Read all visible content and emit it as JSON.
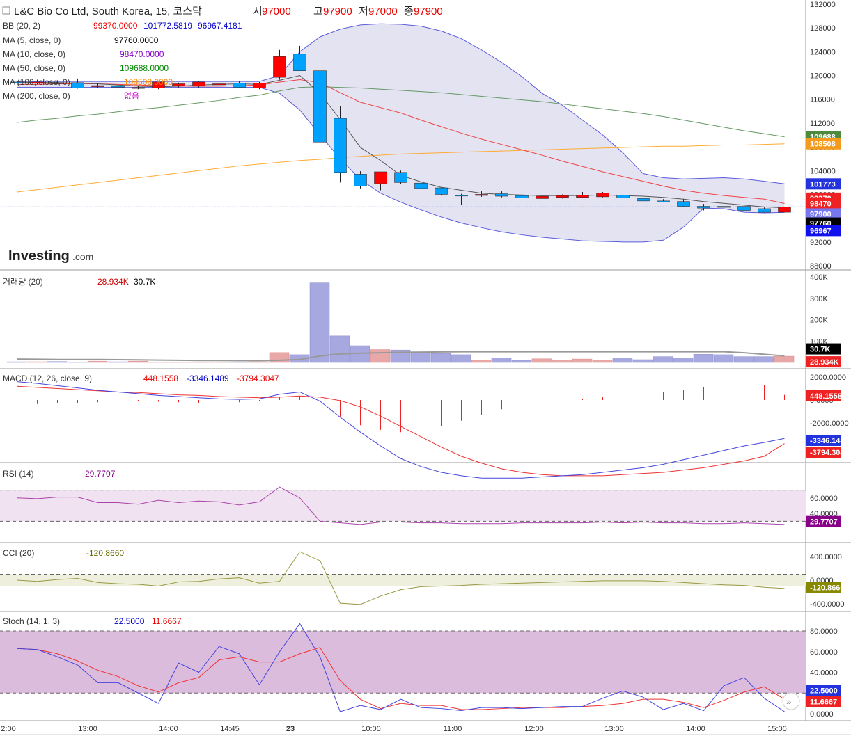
{
  "header": {
    "symbol": "L&C Bio Co Ltd, South Korea, 15, 코스닥",
    "open_label": "시",
    "open": "97000",
    "high_label": "고",
    "high": "97900",
    "low_label": "저",
    "low": "97000",
    "close_label": "종",
    "close": "97900"
  },
  "logo": {
    "main": "Investing",
    "suffix": ".com"
  },
  "colors": {
    "up": "#ff0000",
    "down": "#00a2ff",
    "bb": "#5b5bdc",
    "bb_fill": "#e3e3f2",
    "ma5": "#555555",
    "ma10": "#ee4444",
    "ma50": "#669966",
    "ma100": "#ffaa33",
    "vol_up": "#e8a8a8",
    "vol_down": "#a8a8e0",
    "macd": "#4444dd",
    "signal": "#ee3333",
    "rsi": "#aa44aa",
    "cci": "#999944",
    "stoch_k": "#4444dd",
    "stoch_d": "#ee3333"
  },
  "legends": {
    "bb": {
      "label": "BB (20, 2)",
      "v1": "99370.0000",
      "v2": "101772.5819",
      "v3": "96967.4181"
    },
    "ma5": {
      "label": "MA (5, close, 0)",
      "v": "97760.0000"
    },
    "ma10": {
      "label": "MA (10, close, 0)",
      "v": "98470.0000"
    },
    "ma50": {
      "label": "MA (50, close, 0)",
      "v": "109688.0000"
    },
    "ma100": {
      "label": "MA (100, close, 0)",
      "v": "108508.0000"
    },
    "ma200": {
      "label": "MA (200, close, 0)",
      "v": "없음"
    },
    "vol": {
      "label": "거래량 (20)",
      "v1": "28.934K",
      "v2": "30.7K"
    },
    "macd": {
      "label": "MACD (12, 26, close, 9)",
      "v1": "448.1558",
      "v2": "-3346.1489",
      "v3": "-3794.3047"
    },
    "rsi": {
      "label": "RSI (14)",
      "v": "29.7707"
    },
    "cci": {
      "label": "CCI (20)",
      "v": "-120.8660"
    },
    "stoch": {
      "label": "Stoch (14, 1, 3)",
      "v1": "22.5000",
      "v2": "11.6667"
    }
  },
  "chart_data": {
    "type": "candlestick",
    "price_axis": {
      "min": 88000,
      "max": 132000,
      "ticks": [
        "132000",
        "128000",
        "124000",
        "120000",
        "116000",
        "112000",
        "108000",
        "104000",
        "100000",
        "96000",
        "92000",
        "88000"
      ]
    },
    "x_labels": [
      "2:00",
      "13:00",
      "14:00",
      "14:45",
      "23",
      "10:00",
      "11:00",
      "12:00",
      "13:00",
      "14:00",
      "15:00"
    ],
    "candles": [
      {
        "o": 118900,
        "h": 119200,
        "l": 118400,
        "c": 118700
      },
      {
        "o": 118700,
        "h": 119300,
        "l": 118500,
        "c": 118900
      },
      {
        "o": 118800,
        "h": 119200,
        "l": 118600,
        "c": 118700
      },
      {
        "o": 118800,
        "h": 119500,
        "l": 117800,
        "c": 117900
      },
      {
        "o": 118200,
        "h": 118700,
        "l": 117900,
        "c": 118300
      },
      {
        "o": 118200,
        "h": 118500,
        "l": 117900,
        "c": 118100
      },
      {
        "o": 117900,
        "h": 118300,
        "l": 117700,
        "c": 118000
      },
      {
        "o": 117900,
        "h": 118900,
        "l": 117700,
        "c": 118900
      },
      {
        "o": 118300,
        "h": 118800,
        "l": 118000,
        "c": 118600
      },
      {
        "o": 118200,
        "h": 119000,
        "l": 118000,
        "c": 118900
      },
      {
        "o": 118500,
        "h": 118900,
        "l": 118300,
        "c": 118600
      },
      {
        "o": 118700,
        "h": 119000,
        "l": 117900,
        "c": 118000
      },
      {
        "o": 117900,
        "h": 118900,
        "l": 117700,
        "c": 118700
      },
      {
        "o": 119700,
        "h": 124300,
        "l": 119300,
        "c": 123200
      },
      {
        "o": 123600,
        "h": 125000,
        "l": 120800,
        "c": 120800
      },
      {
        "o": 120800,
        "h": 121900,
        "l": 108500,
        "c": 108800
      },
      {
        "o": 112800,
        "h": 114800,
        "l": 102000,
        "c": 103700
      },
      {
        "o": 103400,
        "h": 103900,
        "l": 101000,
        "c": 101400
      },
      {
        "o": 101800,
        "h": 103800,
        "l": 100700,
        "c": 103800
      },
      {
        "o": 103700,
        "h": 104000,
        "l": 101800,
        "c": 102000
      },
      {
        "o": 101900,
        "h": 102000,
        "l": 100900,
        "c": 101000
      },
      {
        "o": 101100,
        "h": 101100,
        "l": 99800,
        "c": 100000
      },
      {
        "o": 99900,
        "h": 100100,
        "l": 98200,
        "c": 99800
      },
      {
        "o": 99900,
        "h": 100500,
        "l": 99600,
        "c": 100000
      },
      {
        "o": 100100,
        "h": 100500,
        "l": 99500,
        "c": 99700
      },
      {
        "o": 99800,
        "h": 100400,
        "l": 99300,
        "c": 99400
      },
      {
        "o": 99300,
        "h": 100100,
        "l": 99200,
        "c": 99700
      },
      {
        "o": 99500,
        "h": 100000,
        "l": 99300,
        "c": 99800
      },
      {
        "o": 99500,
        "h": 100400,
        "l": 99400,
        "c": 99900
      },
      {
        "o": 99600,
        "h": 100400,
        "l": 99500,
        "c": 100200
      },
      {
        "o": 99900,
        "h": 100000,
        "l": 99300,
        "c": 99400
      },
      {
        "o": 99300,
        "h": 99500,
        "l": 98600,
        "c": 98900
      },
      {
        "o": 98900,
        "h": 99200,
        "l": 98700,
        "c": 98800
      },
      {
        "o": 98800,
        "h": 99200,
        "l": 97900,
        "c": 98000
      },
      {
        "o": 98000,
        "h": 98400,
        "l": 97300,
        "c": 97700
      },
      {
        "o": 98000,
        "h": 98800,
        "l": 97600,
        "c": 97900
      },
      {
        "o": 98000,
        "h": 98300,
        "l": 97200,
        "c": 97300
      },
      {
        "o": 97600,
        "h": 97800,
        "l": 97000,
        "c": 97000
      },
      {
        "o": 97000,
        "h": 97900,
        "l": 97000,
        "c": 97900
      }
    ],
    "bb_upper": [
      119000,
      119000,
      119000,
      119000,
      119000,
      119000,
      119000,
      119000,
      119000,
      119000,
      119000,
      119000,
      119000,
      120000,
      124000,
      126500,
      127800,
      128500,
      128700,
      128600,
      128300,
      127500,
      126200,
      124300,
      122200,
      119800,
      117000,
      115000,
      112500,
      110000,
      107000,
      103500,
      102800,
      102600,
      102700,
      102800,
      102600,
      102200,
      101773
    ],
    "bb_lower": [
      118000,
      118000,
      118000,
      118000,
      118000,
      118000,
      118000,
      118000,
      118000,
      118000,
      118000,
      118000,
      118000,
      117000,
      114200,
      110000,
      106000,
      102500,
      100200,
      98700,
      97400,
      96200,
      95200,
      94400,
      93700,
      93200,
      92800,
      92500,
      92200,
      92100,
      92000,
      92000,
      92300,
      94500,
      97700,
      97600,
      97000,
      96900,
      96967
    ],
    "ma5": [
      118900,
      118800,
      118800,
      118700,
      118600,
      118400,
      118200,
      118100,
      118200,
      118400,
      118500,
      118600,
      118500,
      119200,
      120000,
      117000,
      112600,
      107900,
      105700,
      103200,
      102100,
      101200,
      100700,
      100200,
      100000,
      99900,
      99800,
      99800,
      99800,
      99900,
      99800,
      99700,
      99500,
      99200,
      98800,
      98500,
      98200,
      97900,
      97760
    ],
    "ma10": [
      118500,
      118500,
      118600,
      118600,
      118600,
      118500,
      118400,
      118300,
      118200,
      118200,
      118200,
      118300,
      118400,
      118900,
      119300,
      118800,
      117100,
      115500,
      114600,
      113700,
      112500,
      111400,
      110300,
      109300,
      108400,
      107500,
      106600,
      105600,
      104700,
      103800,
      103000,
      102200,
      101400,
      100700,
      100200,
      99800,
      99500,
      99200,
      98470
    ],
    "ma50": [
      112100,
      112500,
      112800,
      113200,
      113500,
      113900,
      114300,
      114600,
      115000,
      115400,
      115800,
      116300,
      116700,
      117400,
      118000,
      118100,
      118000,
      117900,
      117700,
      117500,
      117300,
      117100,
      116800,
      116500,
      116200,
      115900,
      115600,
      115200,
      114800,
      114400,
      114000,
      113600,
      113100,
      112500,
      111900,
      111300,
      110700,
      110200,
      109688
    ],
    "ma100": [
      100400,
      100800,
      101200,
      101600,
      102000,
      102400,
      102800,
      103200,
      103600,
      104000,
      104400,
      104800,
      105100,
      105400,
      105700,
      105900,
      106200,
      106400,
      106600,
      106800,
      106900,
      107000,
      107100,
      107200,
      107300,
      107400,
      107500,
      107600,
      107700,
      107800,
      107900,
      108000,
      108100,
      108100,
      108200,
      108300,
      108300,
      108400,
      108508
    ],
    "volume": {
      "axis_max": 400,
      "ticks": [
        "400K",
        "300K",
        "200K",
        "100K"
      ],
      "values": [
        3,
        3,
        4,
        2,
        6,
        3,
        6,
        1,
        1,
        2,
        2,
        1,
        3,
        46,
        36,
        372,
        124,
        78,
        60,
        58,
        50,
        42,
        36,
        12,
        21,
        10,
        17,
        12,
        16,
        11,
        18,
        13,
        27,
        18,
        38,
        36,
        27,
        27,
        29
      ]
    },
    "volume_ma": [
      16,
      15,
      14,
      14,
      14,
      13,
      12,
      11,
      10,
      9,
      9,
      8,
      8,
      10,
      14,
      30,
      40,
      43,
      45,
      47,
      48,
      49,
      50,
      50,
      50,
      50,
      50,
      50,
      50,
      50,
      50,
      50,
      50,
      50,
      50,
      50,
      45,
      38,
      30.7
    ],
    "macd": {
      "ticks": [
        "2000.0000",
        "0.0000",
        "-2000.0000"
      ],
      "macd_line": [
        1600,
        1450,
        1250,
        1050,
        850,
        700,
        550,
        400,
        300,
        200,
        100,
        50,
        100,
        500,
        700,
        -100,
        -1500,
        -2800,
        -4000,
        -5100,
        -5800,
        -6300,
        -6600,
        -6800,
        -6800,
        -6800,
        -6700,
        -6600,
        -6500,
        -6300,
        -6100,
        -5900,
        -5600,
        -5200,
        -4800,
        -4400,
        -4000,
        -3700,
        -3346
      ],
      "signal_line": [
        1200,
        1100,
        1000,
        900,
        800,
        700,
        650,
        550,
        450,
        400,
        300,
        250,
        200,
        250,
        350,
        250,
        -50,
        -600,
        -1400,
        -2300,
        -3200,
        -4100,
        -4900,
        -5500,
        -6000,
        -6300,
        -6500,
        -6600,
        -6600,
        -6600,
        -6500,
        -6400,
        -6300,
        -6100,
        -5900,
        -5600,
        -5300,
        -4900,
        -3794
      ],
      "hist": [
        -400,
        -350,
        -300,
        -250,
        -200,
        -150,
        -100,
        -150,
        -200,
        -250,
        -300,
        -200,
        -100,
        250,
        350,
        -350,
        -1450,
        -2200,
        -2600,
        -2800,
        -2700,
        -2300,
        -1800,
        -1300,
        -800,
        -500,
        -200,
        0,
        100,
        300,
        400,
        500,
        700,
        900,
        1100,
        1200,
        1300,
        1300,
        448
      ]
    },
    "rsi": {
      "ticks": [
        "60.0000",
        "40.0000"
      ],
      "upper": 70,
      "lower": 30,
      "values": [
        60,
        59,
        61,
        61,
        54,
        54,
        52,
        57,
        54,
        56,
        55,
        51,
        55,
        74,
        60,
        30,
        28,
        26,
        29,
        29,
        28,
        28,
        27,
        27,
        27,
        28,
        28,
        28,
        28,
        29,
        28,
        29,
        28,
        28,
        27,
        27,
        28,
        27,
        26,
        29.77
      ]
    },
    "cci": {
      "ticks": [
        "400.0000",
        "0.0000",
        "-400.0000"
      ],
      "upper": 100,
      "lower": -100,
      "values": [
        0,
        -20,
        10,
        30,
        -40,
        -60,
        -70,
        -100,
        -30,
        -20,
        20,
        40,
        -50,
        -20,
        480,
        330,
        -390,
        -410,
        -270,
        -160,
        -110,
        -100,
        -90,
        -70,
        -60,
        -50,
        -40,
        -30,
        -20,
        -10,
        -10,
        -10,
        -20,
        -40,
        -60,
        -80,
        -90,
        -120,
        -140,
        -120.866
      ]
    },
    "stoch": {
      "ticks": [
        "80.0000",
        "60.0000",
        "40.0000",
        "20.0000",
        "0.0000"
      ],
      "upper": 80,
      "lower": 20,
      "k": [
        63,
        62,
        55,
        47,
        30,
        30,
        20,
        10,
        49,
        40,
        65,
        58,
        28,
        60,
        87,
        55,
        2,
        8,
        4,
        14,
        6,
        5,
        3,
        6,
        6,
        5,
        6,
        7,
        7,
        15,
        22,
        16,
        4,
        10,
        3,
        27,
        35,
        15,
        2,
        22.5
      ],
      "d": [
        63,
        62,
        58,
        51,
        42,
        36,
        27,
        21,
        30,
        35,
        52,
        55,
        50,
        50,
        58,
        64,
        32,
        14,
        5,
        10,
        8,
        8,
        4,
        4,
        5,
        6,
        6,
        6,
        7,
        8,
        10,
        14,
        14,
        11,
        6,
        13,
        21,
        26,
        14,
        11.67
      ]
    }
  }
}
